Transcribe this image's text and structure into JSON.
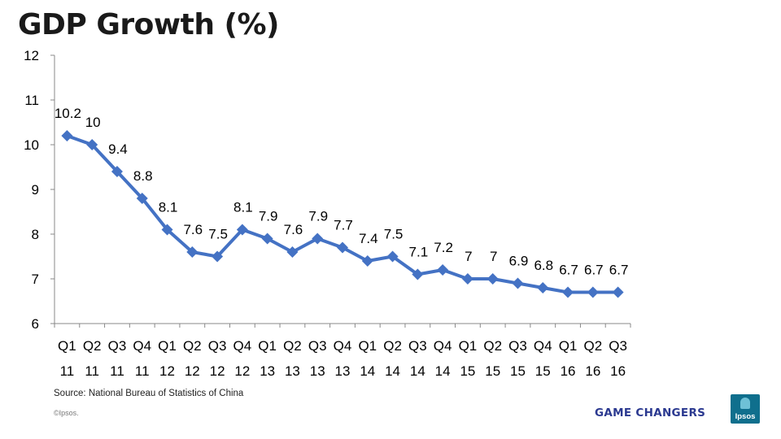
{
  "page": {
    "title": "GDP Growth (%)",
    "source": "Source: National Bureau of Statistics of China",
    "copyright": "©Ipsos.",
    "brand_tag": "GAME CHANGERS",
    "logo_text": "Ipsos"
  },
  "colors": {
    "series": "#4472C4",
    "axis": "#898989",
    "text": "#000000",
    "brand": "#2b3990",
    "logo_bg": "#0f6f8d"
  },
  "chart_data": {
    "type": "line",
    "title": "GDP Growth (%)",
    "xlabel": "",
    "ylabel": "",
    "ylim": [
      6,
      12
    ],
    "yticks": [
      6,
      7,
      8,
      9,
      10,
      11,
      12
    ],
    "grid": false,
    "legend": "none",
    "marker": "diamond",
    "categories": [
      [
        "Q1",
        "11"
      ],
      [
        "Q2",
        "11"
      ],
      [
        "Q3",
        "11"
      ],
      [
        "Q4",
        "11"
      ],
      [
        "Q1",
        "12"
      ],
      [
        "Q2",
        "12"
      ],
      [
        "Q3",
        "12"
      ],
      [
        "Q4",
        "12"
      ],
      [
        "Q1",
        "13"
      ],
      [
        "Q2",
        "13"
      ],
      [
        "Q3",
        "13"
      ],
      [
        "Q4",
        "13"
      ],
      [
        "Q1",
        "14"
      ],
      [
        "Q2",
        "14"
      ],
      [
        "Q3",
        "14"
      ],
      [
        "Q4",
        "14"
      ],
      [
        "Q1",
        "15"
      ],
      [
        "Q2",
        "15"
      ],
      [
        "Q3",
        "15"
      ],
      [
        "Q4",
        "15"
      ],
      [
        "Q1",
        "16"
      ],
      [
        "Q2",
        "16"
      ],
      [
        "Q3",
        "16"
      ]
    ],
    "series": [
      {
        "values": [
          10.2,
          10,
          9.4,
          8.8,
          8.1,
          7.6,
          7.5,
          8.1,
          7.9,
          7.6,
          7.9,
          7.7,
          7.4,
          7.5,
          7.1,
          7.2,
          7,
          7,
          6.9,
          6.8,
          6.7,
          6.7,
          6.7
        ]
      }
    ]
  }
}
